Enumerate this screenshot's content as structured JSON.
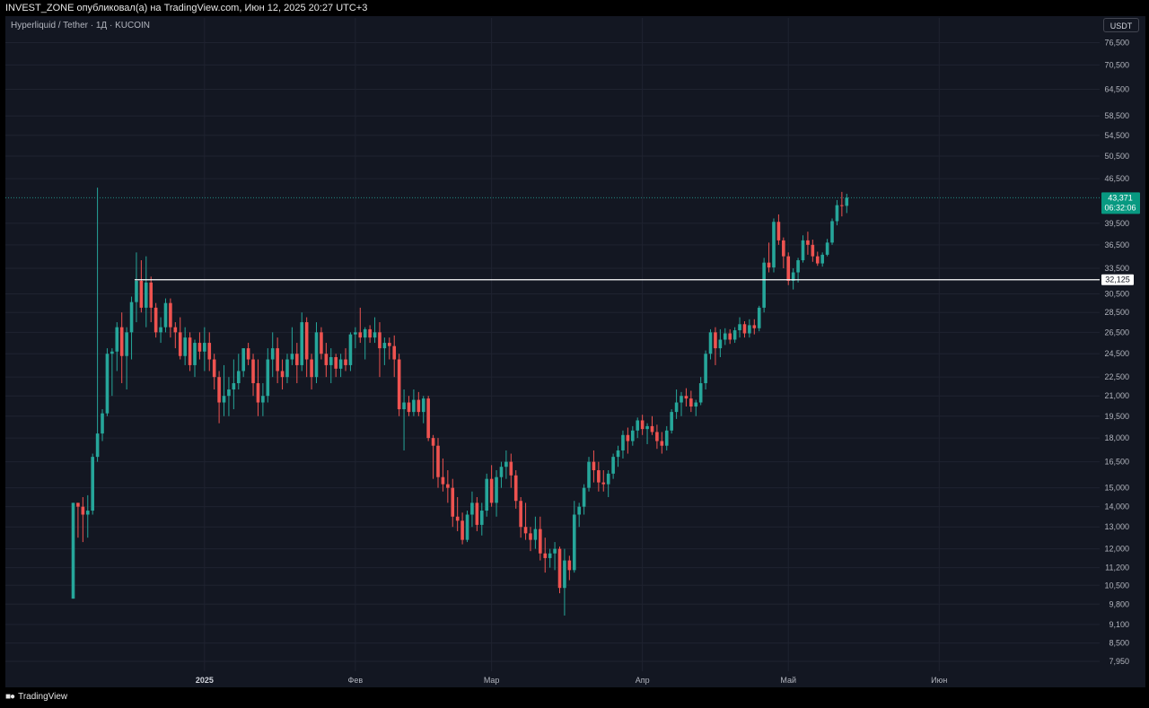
{
  "header": {
    "attribution": "INVEST_ZONE опубликовал(а) на TradingView.com, Июн 12, 2025 20:27 UTC+3",
    "symbol_info": "Hyperliquid / Tether · 1Д · KUCOIN",
    "currency_button": "USDT"
  },
  "footer": {
    "logo_icon": "tradingview-logo-icon",
    "brand": "TradingView"
  },
  "colors": {
    "background": "#131722",
    "up": "#26a69a",
    "down": "#ef5350",
    "grid": "#1f2330",
    "level_line": "#ffffff",
    "price_tag": "#089981"
  },
  "chart_data": {
    "type": "candlestick",
    "scale": "log",
    "ylim": [
      7500,
      80000
    ],
    "y_ticks": [
      "76,500",
      "70,500",
      "64,500",
      "58,500",
      "54,500",
      "50,500",
      "46,500",
      "39,500",
      "36,500",
      "33,500",
      "30,500",
      "28,500",
      "26,500",
      "24,500",
      "22,500",
      "21,000",
      "19,500",
      "18,000",
      "16,500",
      "15,000",
      "14,000",
      "13,000",
      "12,000",
      "11,200",
      "10,500",
      "9,800",
      "9,100",
      "8,500",
      "7,950"
    ],
    "x_ticks": [
      {
        "label": "2025",
        "index": 27,
        "bold": true
      },
      {
        "label": "Фев",
        "index": 58,
        "bold": false
      },
      {
        "label": "Мар",
        "index": 86,
        "bold": false
      },
      {
        "label": "Апр",
        "index": 117,
        "bold": false
      },
      {
        "label": "Май",
        "index": 147,
        "bold": false
      },
      {
        "label": "Июн",
        "index": 178,
        "bold": false
      }
    ],
    "last_price": {
      "label": "43,371",
      "countdown": "06:32:06",
      "value": 43371
    },
    "horizontal_level": {
      "label": "32,125",
      "value": 32125,
      "from_index": 13
    },
    "candles": [
      [
        10000,
        14200,
        10000,
        14200
      ],
      [
        14200,
        14200,
        12500,
        14000
      ],
      [
        14000,
        14500,
        12300,
        13600
      ],
      [
        13600,
        14600,
        12500,
        13800
      ],
      [
        13800,
        17000,
        13600,
        16800
      ],
      [
        16800,
        45000,
        16500,
        18300
      ],
      [
        18300,
        20000,
        17800,
        19700
      ],
      [
        19700,
        25000,
        19500,
        24500
      ],
      [
        24500,
        25000,
        21000,
        24700
      ],
      [
        24700,
        27500,
        23000,
        27000
      ],
      [
        27000,
        28500,
        22000,
        24300
      ],
      [
        24300,
        27000,
        21500,
        26500
      ],
      [
        26500,
        30200,
        24000,
        29600
      ],
      [
        29600,
        35500,
        27500,
        32000
      ],
      [
        32000,
        34500,
        28500,
        29000
      ],
      [
        29000,
        35000,
        27000,
        31800
      ],
      [
        31800,
        32500,
        27500,
        29000
      ],
      [
        29000,
        29500,
        26000,
        26500
      ],
      [
        26500,
        28000,
        25500,
        27000
      ],
      [
        27000,
        30000,
        26500,
        29500
      ],
      [
        29500,
        30000,
        26000,
        27000
      ],
      [
        27000,
        27500,
        25000,
        26500
      ],
      [
        26500,
        28000,
        24000,
        24300
      ],
      [
        24300,
        27000,
        23500,
        26000
      ],
      [
        26000,
        26500,
        23000,
        23500
      ],
      [
        23500,
        25800,
        22500,
        25500
      ],
      [
        25500,
        26500,
        24000,
        24700
      ],
      [
        24700,
        27000,
        23000,
        25500
      ],
      [
        25500,
        26500,
        23000,
        24000
      ],
      [
        24000,
        24500,
        21500,
        22500
      ],
      [
        22500,
        23000,
        19000,
        20500
      ],
      [
        20500,
        23500,
        19500,
        21000
      ],
      [
        21000,
        22500,
        19500,
        21500
      ],
      [
        21500,
        24000,
        20000,
        22000
      ],
      [
        22000,
        24500,
        21500,
        23000
      ],
      [
        23000,
        25000,
        22500,
        25000
      ],
      [
        25000,
        25500,
        23500,
        24000
      ],
      [
        24000,
        24500,
        21000,
        22000
      ],
      [
        22000,
        24000,
        19500,
        20500
      ],
      [
        20500,
        22000,
        19500,
        21000
      ],
      [
        21000,
        25000,
        20500,
        24000
      ],
      [
        24000,
        26500,
        22500,
        25000
      ],
      [
        25000,
        26000,
        22000,
        23000
      ],
      [
        23000,
        24000,
        21500,
        22500
      ],
      [
        22500,
        24500,
        22000,
        24000
      ],
      [
        24000,
        27000,
        23500,
        24500
      ],
      [
        24500,
        25500,
        22000,
        23500
      ],
      [
        23500,
        28500,
        23000,
        27500
      ],
      [
        27500,
        28000,
        22500,
        24000
      ],
      [
        24000,
        24500,
        21500,
        22500
      ],
      [
        22500,
        27500,
        22000,
        26500
      ],
      [
        26500,
        27000,
        24000,
        24500
      ],
      [
        24500,
        25500,
        22500,
        23500
      ],
      [
        23500,
        25000,
        22000,
        24200
      ],
      [
        24200,
        24500,
        22500,
        23200
      ],
      [
        23200,
        24500,
        22500,
        24000
      ],
      [
        24000,
        25000,
        23000,
        23500
      ],
      [
        23500,
        26500,
        23000,
        26300
      ],
      [
        26300,
        27000,
        25000,
        26500
      ],
      [
        26500,
        29000,
        25500,
        26000
      ],
      [
        26000,
        27000,
        24000,
        26800
      ],
      [
        26800,
        27200,
        25500,
        26000
      ],
      [
        26000,
        28000,
        25500,
        26500
      ],
      [
        26500,
        27500,
        22500,
        25000
      ],
      [
        25000,
        26000,
        23500,
        25500
      ],
      [
        25500,
        26000,
        24000,
        25200
      ],
      [
        25200,
        26200,
        22500,
        24000
      ],
      [
        24000,
        24500,
        19500,
        20000
      ],
      [
        20000,
        21500,
        17200,
        20500
      ],
      [
        20500,
        21000,
        19500,
        19800
      ],
      [
        19800,
        21500,
        19500,
        20700
      ],
      [
        20700,
        21300,
        19500,
        19800
      ],
      [
        19800,
        21000,
        19000,
        20800
      ],
      [
        20800,
        21000,
        17800,
        18000
      ],
      [
        18000,
        18200,
        15500,
        17500
      ],
      [
        17500,
        18000,
        15000,
        15600
      ],
      [
        15600,
        16700,
        14800,
        15200
      ],
      [
        15200,
        16000,
        14200,
        15000
      ],
      [
        15000,
        15500,
        13000,
        13500
      ],
      [
        13500,
        14500,
        12800,
        13300
      ],
      [
        13300,
        13700,
        12200,
        12400
      ],
      [
        12400,
        13800,
        12300,
        13600
      ],
      [
        13600,
        14800,
        13000,
        14200
      ],
      [
        14200,
        14500,
        12800,
        13100
      ],
      [
        13100,
        14200,
        12600,
        13800
      ],
      [
        13800,
        15800,
        13500,
        15500
      ],
      [
        15500,
        16300,
        14000,
        14200
      ],
      [
        14200,
        16000,
        13500,
        15600
      ],
      [
        15600,
        16500,
        15000,
        16200
      ],
      [
        16200,
        17200,
        15500,
        16500
      ],
      [
        16500,
        17000,
        15000,
        15700
      ],
      [
        15700,
        16000,
        13900,
        14300
      ],
      [
        14300,
        14500,
        12500,
        13000
      ],
      [
        13000,
        14200,
        12400,
        12700
      ],
      [
        12700,
        13000,
        11900,
        12400
      ],
      [
        12400,
        13500,
        12000,
        12900
      ],
      [
        12900,
        13500,
        11500,
        11800
      ],
      [
        11800,
        12500,
        11000,
        11600
      ],
      [
        11600,
        12000,
        11200,
        11800
      ],
      [
        11800,
        12300,
        11100,
        12000
      ],
      [
        12000,
        12100,
        10200,
        10400
      ],
      [
        10400,
        12000,
        9400,
        11500
      ],
      [
        11500,
        11700,
        10700,
        11100
      ],
      [
        11100,
        14300,
        11000,
        13600
      ],
      [
        13600,
        14200,
        13000,
        14000
      ],
      [
        14000,
        15200,
        13600,
        15000
      ],
      [
        15000,
        16800,
        14800,
        16500
      ],
      [
        16500,
        17200,
        15300,
        16000
      ],
      [
        16000,
        16500,
        14800,
        15300
      ],
      [
        15300,
        16000,
        14800,
        15200
      ],
      [
        15200,
        16000,
        14500,
        15800
      ],
      [
        15800,
        17000,
        15500,
        16800
      ],
      [
        16800,
        17500,
        16200,
        17200
      ],
      [
        17200,
        18500,
        16700,
        18200
      ],
      [
        18200,
        18700,
        17000,
        17800
      ],
      [
        17800,
        18800,
        17500,
        18500
      ],
      [
        18500,
        19400,
        18000,
        19200
      ],
      [
        19200,
        19600,
        18200,
        18600
      ],
      [
        18600,
        19000,
        17600,
        18800
      ],
      [
        18800,
        19500,
        18200,
        18400
      ],
      [
        18400,
        18900,
        17300,
        17800
      ],
      [
        17800,
        18400,
        17000,
        17500
      ],
      [
        17500,
        18800,
        17200,
        18500
      ],
      [
        18500,
        20000,
        18300,
        19800
      ],
      [
        19800,
        21500,
        19300,
        20500
      ],
      [
        20500,
        21300,
        19500,
        21000
      ],
      [
        21000,
        21600,
        20200,
        20800
      ],
      [
        20800,
        21400,
        19800,
        20200
      ],
      [
        20200,
        20700,
        19500,
        20500
      ],
      [
        20500,
        22500,
        20300,
        22000
      ],
      [
        22000,
        24800,
        21500,
        24500
      ],
      [
        24500,
        26800,
        24000,
        26500
      ],
      [
        26500,
        27000,
        23500,
        25000
      ],
      [
        25000,
        26800,
        24200,
        25800
      ],
      [
        25800,
        26900,
        25300,
        26400
      ],
      [
        26400,
        26800,
        25400,
        25800
      ],
      [
        25800,
        27000,
        25500,
        26700
      ],
      [
        26700,
        28000,
        26000,
        27300
      ],
      [
        27300,
        27600,
        26000,
        26400
      ],
      [
        26400,
        27800,
        26000,
        27200
      ],
      [
        27200,
        27800,
        26300,
        26900
      ],
      [
        26900,
        29200,
        26600,
        29000
      ],
      [
        29000,
        34800,
        28500,
        34200
      ],
      [
        34200,
        36800,
        33000,
        33600
      ],
      [
        33600,
        40200,
        33000,
        39700
      ],
      [
        39700,
        40800,
        36500,
        37100
      ],
      [
        37100,
        37500,
        33500,
        35000
      ],
      [
        35000,
        35500,
        31500,
        32000
      ],
      [
        32000,
        33500,
        31000,
        33000
      ],
      [
        33000,
        34800,
        31800,
        34500
      ],
      [
        34500,
        37800,
        34200,
        37100
      ],
      [
        37100,
        38300,
        35200,
        36500
      ],
      [
        36500,
        37200,
        34300,
        35000
      ],
      [
        35000,
        35600,
        33800,
        34100
      ],
      [
        34100,
        35500,
        33700,
        35200
      ],
      [
        35200,
        37300,
        35000,
        36800
      ],
      [
        36800,
        40200,
        36500,
        39800
      ],
      [
        39800,
        43000,
        39200,
        42200
      ],
      [
        42200,
        44300,
        40500,
        42100
      ],
      [
        42100,
        44000,
        41000,
        43371
      ]
    ]
  }
}
